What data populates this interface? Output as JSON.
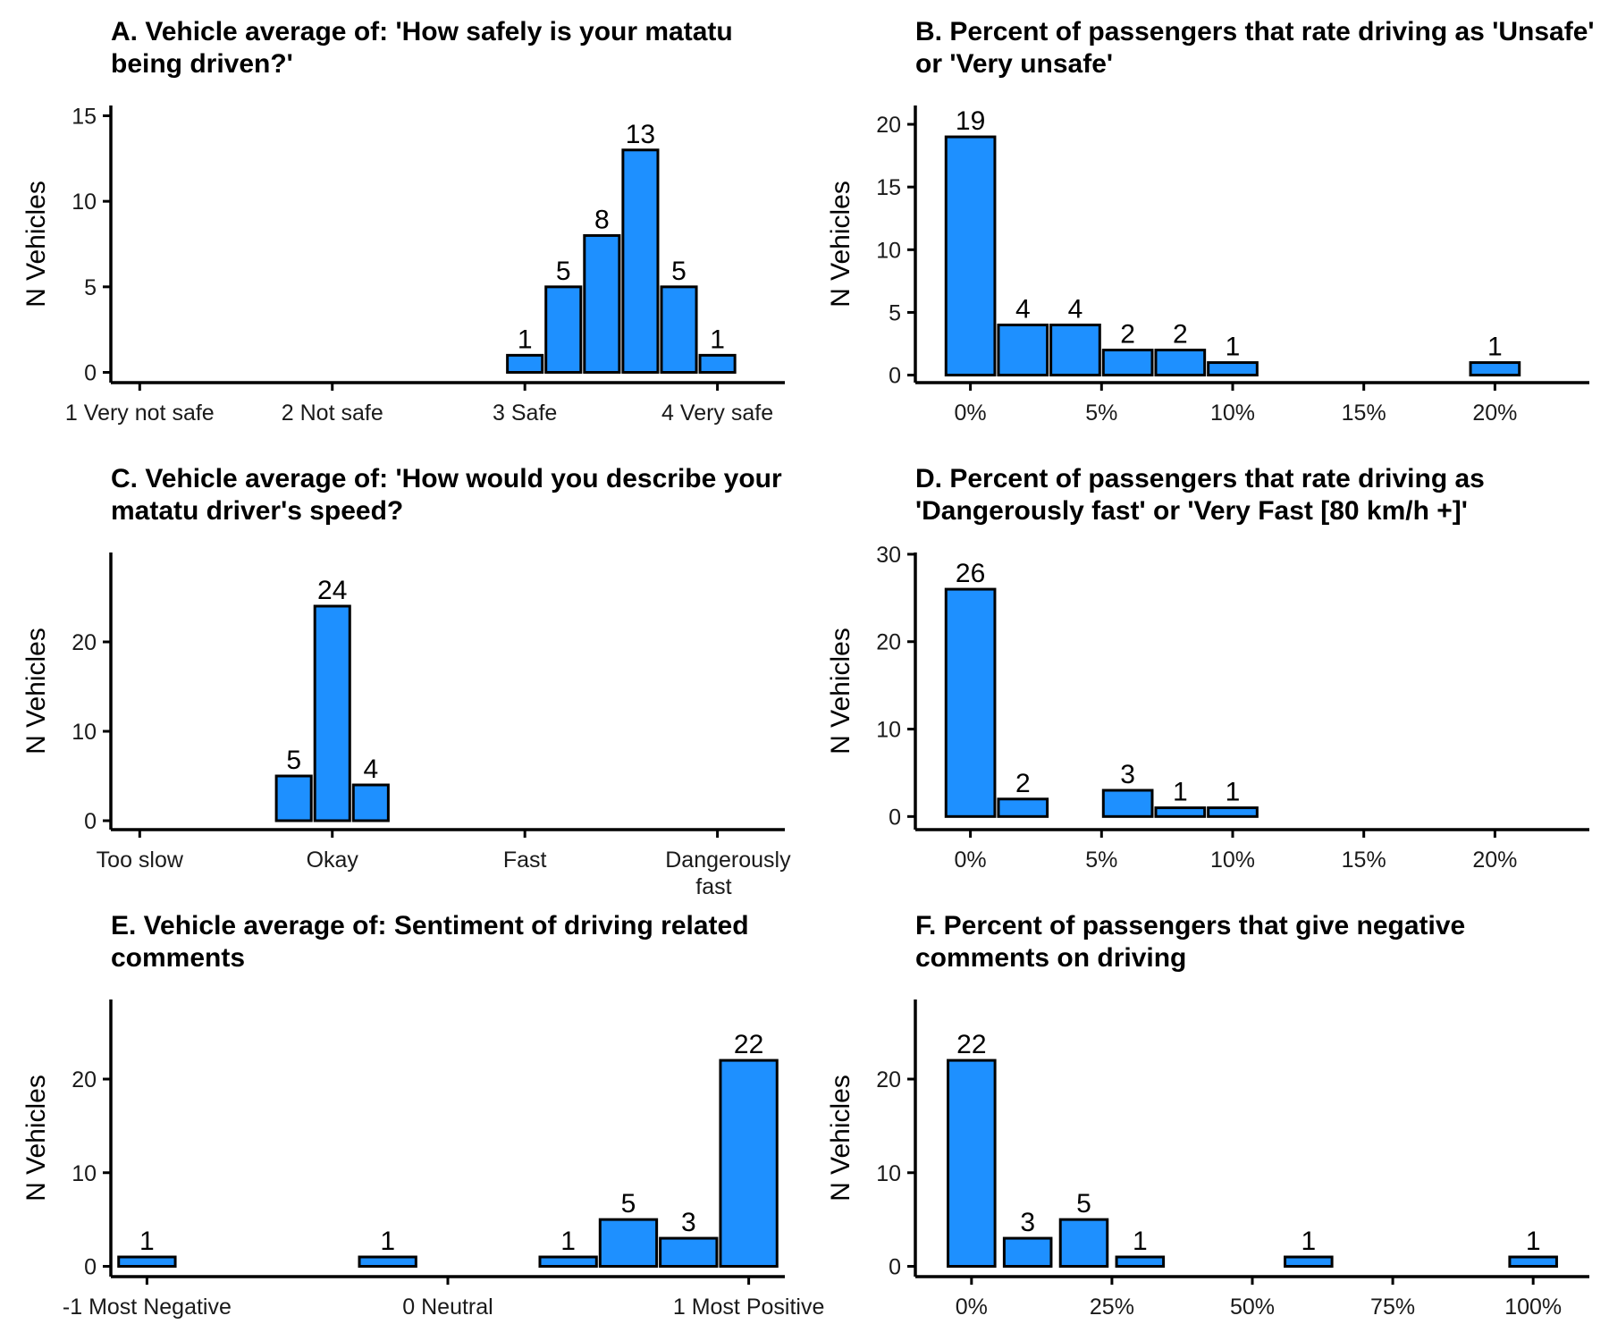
{
  "chart_data": [
    {
      "id": "A",
      "type": "bar",
      "title": "A. Vehicle average of: 'How safely is your matatu being driven?'",
      "ylabel": "N Vehicles",
      "xlabel": "",
      "xlim": [
        0.85,
        4.35
      ],
      "ylim": [
        -0.6,
        15.6
      ],
      "x_ticks": [
        {
          "value": 1,
          "label": "1 Very not safe"
        },
        {
          "value": 2,
          "label": "2 Not safe"
        },
        {
          "value": 3,
          "label": "3 Safe"
        },
        {
          "value": 4,
          "label": "4 Very safe"
        }
      ],
      "y_ticks": [
        0,
        5,
        10,
        15
      ],
      "bin_width": 0.2,
      "bars": [
        {
          "x": 3.0,
          "value": 1
        },
        {
          "x": 3.2,
          "value": 5
        },
        {
          "x": 3.4,
          "value": 8
        },
        {
          "x": 3.6,
          "value": 13
        },
        {
          "x": 3.8,
          "value": 5
        },
        {
          "x": 4.0,
          "value": 1
        }
      ],
      "grid": false
    },
    {
      "id": "B",
      "type": "bar",
      "title": "B. Percent of passengers that rate driving as 'Unsafe' or 'Very unsafe'",
      "ylabel": "N Vehicles",
      "xlabel": "",
      "xlim": [
        -2.1,
        23.6
      ],
      "ylim": [
        -0.6,
        21.5
      ],
      "x_ticks": [
        {
          "value": 0,
          "label": "0%"
        },
        {
          "value": 5,
          "label": "5%"
        },
        {
          "value": 10,
          "label": "10%"
        },
        {
          "value": 15,
          "label": "15%"
        },
        {
          "value": 20,
          "label": "20%"
        }
      ],
      "y_ticks": [
        0,
        5,
        10,
        15,
        20
      ],
      "bin_width": 2,
      "bars": [
        {
          "x": 0,
          "value": 19
        },
        {
          "x": 2,
          "value": 4
        },
        {
          "x": 4,
          "value": 4
        },
        {
          "x": 6,
          "value": 2
        },
        {
          "x": 8,
          "value": 2
        },
        {
          "x": 10,
          "value": 1
        },
        {
          "x": 20,
          "value": 1
        }
      ],
      "grid": false
    },
    {
      "id": "C",
      "type": "bar",
      "title": "C. Vehicle average of: 'How would you describe your matatu driver's speed?",
      "ylabel": "N Vehicles",
      "xlabel": "",
      "xlim": [
        0.85,
        4.35
      ],
      "ylim": [
        -1.0,
        30.0
      ],
      "x_ticks": [
        {
          "value": 1,
          "label": "Too slow"
        },
        {
          "value": 2,
          "label": "Okay"
        },
        {
          "value": 3,
          "label": "Fast"
        },
        {
          "value": 4,
          "label": "Dangerously fast"
        }
      ],
      "y_ticks": [
        0,
        10,
        20
      ],
      "bin_width": 0.2,
      "bars": [
        {
          "x": 1.8,
          "value": 5
        },
        {
          "x": 2.0,
          "value": 24
        },
        {
          "x": 2.2,
          "value": 4
        }
      ],
      "grid": false
    },
    {
      "id": "D",
      "type": "bar",
      "title": "D. Percent of passengers that rate driving as 'Dangerously fast' or 'Very Fast [80 km/h +]'",
      "ylabel": "N Vehicles",
      "xlabel": "",
      "xlim": [
        -2.1,
        23.6
      ],
      "ylim": [
        -1.5,
        30.2
      ],
      "x_ticks": [
        {
          "value": 0,
          "label": "0%"
        },
        {
          "value": 5,
          "label": "5%"
        },
        {
          "value": 10,
          "label": "10%"
        },
        {
          "value": 15,
          "label": "15%"
        },
        {
          "value": 20,
          "label": "20%"
        }
      ],
      "y_ticks": [
        0,
        10,
        20,
        30
      ],
      "bin_width": 2,
      "bars": [
        {
          "x": 0,
          "value": 26
        },
        {
          "x": 2,
          "value": 2
        },
        {
          "x": 6,
          "value": 3
        },
        {
          "x": 8,
          "value": 1
        },
        {
          "x": 10,
          "value": 1
        }
      ],
      "grid": false
    },
    {
      "id": "E",
      "type": "bar",
      "title": "E. Vehicle average of: Sentiment of driving related comments",
      "ylabel": "N Vehicles",
      "xlabel": "",
      "xlim": [
        -1.12,
        1.12
      ],
      "ylim": [
        -1.1,
        28.5
      ],
      "x_ticks": [
        {
          "value": -1,
          "label": "-1 Most Negative"
        },
        {
          "value": 0,
          "label": "0 Neutral"
        },
        {
          "value": 1,
          "label": "1 Most Positive"
        }
      ],
      "y_ticks": [
        0,
        10,
        20
      ],
      "bin_width": 0.2,
      "bars": [
        {
          "x": -1.0,
          "value": 1
        },
        {
          "x": -0.2,
          "value": 1
        },
        {
          "x": 0.4,
          "value": 1
        },
        {
          "x": 0.6,
          "value": 5
        },
        {
          "x": 0.8,
          "value": 3
        },
        {
          "x": 1.0,
          "value": 22
        }
      ],
      "grid": false
    },
    {
      "id": "F",
      "type": "bar",
      "title": "F. Percent of passengers that give negative comments on driving",
      "ylabel": "N Vehicles",
      "xlabel": "",
      "xlim": [
        -10,
        110
      ],
      "ylim": [
        -1.1,
        28.5
      ],
      "x_ticks": [
        {
          "value": 0,
          "label": "0%"
        },
        {
          "value": 25,
          "label": "25%"
        },
        {
          "value": 50,
          "label": "50%"
        },
        {
          "value": 75,
          "label": "75%"
        },
        {
          "value": 100,
          "label": "100%"
        }
      ],
      "y_ticks": [
        0,
        10,
        20
      ],
      "bin_width": 9,
      "bars": [
        {
          "x": 0,
          "value": 22
        },
        {
          "x": 10,
          "value": 3
        },
        {
          "x": 20,
          "value": 5
        },
        {
          "x": 30,
          "value": 1
        },
        {
          "x": 60,
          "value": 1
        },
        {
          "x": 100,
          "value": 1
        }
      ],
      "grid": false
    }
  ],
  "colors": {
    "bar_fill": "#1E90FF",
    "bar_stroke": "#000000",
    "axis": "#000000"
  }
}
